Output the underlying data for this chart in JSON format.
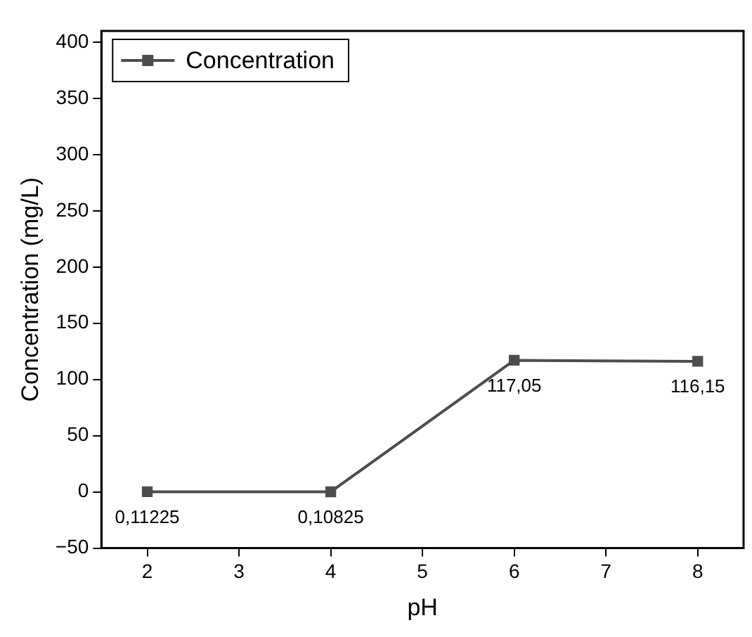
{
  "chart_data": {
    "type": "line",
    "xlabel": "pH",
    "ylabel": "Concentration (mg/L)",
    "x": [
      2,
      4,
      6,
      8
    ],
    "series": [
      {
        "name": "Concentration",
        "color": "#4d4d4d",
        "values": [
          0.11225,
          0.10825,
          117.05,
          116.15
        ],
        "value_labels": [
          "0,11225",
          "0,10825",
          "117,05",
          "116,15"
        ]
      }
    ],
    "xlim": [
      1.5,
      8.5
    ],
    "xticks": [
      2,
      3,
      4,
      5,
      6,
      7,
      8
    ],
    "ylim": [
      -50,
      410
    ],
    "yticks": [
      {
        "value": -50,
        "label": "−50"
      },
      0,
      50,
      100,
      150,
      200,
      250,
      300,
      350,
      400
    ],
    "grid": false,
    "legend": "top left",
    "marker": "square",
    "line_style": "solid"
  }
}
